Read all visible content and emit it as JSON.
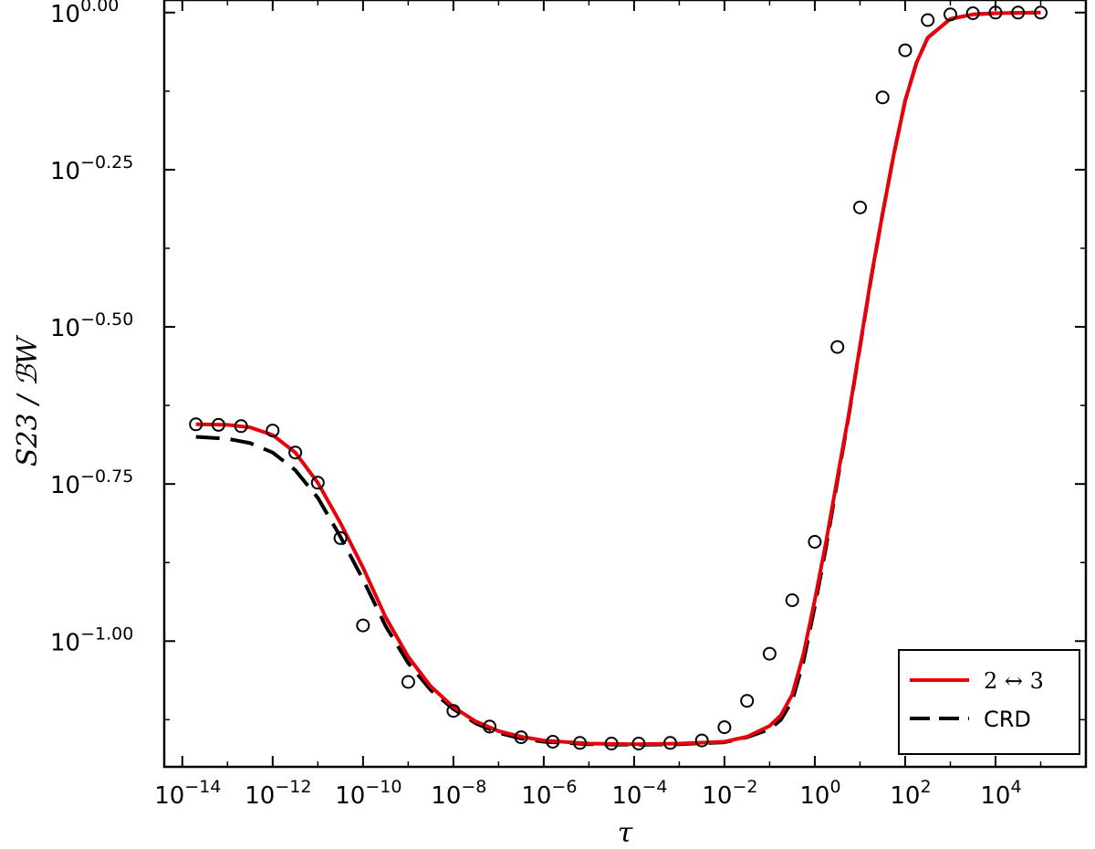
{
  "chart_data": {
    "type": "line",
    "xlabel": "τ",
    "ylabel": "S23 / ℬW",
    "xscale": "log",
    "yscale": "log",
    "xlim_log10": [
      -14.4,
      6.0
    ],
    "ylim_log10": [
      -1.2,
      0.02
    ],
    "x_ticks": [
      {
        "base": "10",
        "exp": "−14"
      },
      {
        "base": "10",
        "exp": "−12"
      },
      {
        "base": "10",
        "exp": "−10"
      },
      {
        "base": "10",
        "exp": "−8"
      },
      {
        "base": "10",
        "exp": "−6"
      },
      {
        "base": "10",
        "exp": "−4"
      },
      {
        "base": "10",
        "exp": "−2"
      },
      {
        "base": "10",
        "exp": "0"
      },
      {
        "base": "10",
        "exp": "2"
      },
      {
        "base": "10",
        "exp": "4"
      }
    ],
    "x_tick_exponents": [
      -14,
      -12,
      -10,
      -8,
      -6,
      -4,
      -2,
      0,
      2,
      4
    ],
    "y_ticks": [
      {
        "base": "10",
        "exp": "0.00"
      },
      {
        "base": "10",
        "exp": "−0.25"
      },
      {
        "base": "10",
        "exp": "−0.50"
      },
      {
        "base": "10",
        "exp": "−0.75"
      },
      {
        "base": "10",
        "exp": "−1.00"
      }
    ],
    "y_tick_exponents": [
      0.0,
      -0.25,
      -0.5,
      -0.75,
      -1.0
    ],
    "legend_position": "bottom-right",
    "series": [
      {
        "name": "2 ↔ 3",
        "style": "solid",
        "color": "#e8000b",
        "log10_x": [
          -13.7,
          -13.0,
          -12.5,
          -12.0,
          -11.5,
          -11.0,
          -10.5,
          -10.0,
          -9.5,
          -9.0,
          -8.5,
          -8.0,
          -7.5,
          -7.0,
          -6.5,
          -6.0,
          -5.0,
          -4.0,
          -3.0,
          -2.0,
          -1.5,
          -1.0,
          -0.75,
          -0.5,
          -0.25,
          0.0,
          0.25,
          0.5,
          0.75,
          1.0,
          1.25,
          1.5,
          1.75,
          2.0,
          2.25,
          2.5,
          3.0,
          3.5,
          4.0,
          5.0
        ],
        "log10_y": [
          -0.655,
          -0.656,
          -0.66,
          -0.672,
          -0.7,
          -0.748,
          -0.812,
          -0.883,
          -0.962,
          -1.025,
          -1.072,
          -1.105,
          -1.128,
          -1.143,
          -1.152,
          -1.158,
          -1.163,
          -1.164,
          -1.163,
          -1.16,
          -1.152,
          -1.135,
          -1.118,
          -1.085,
          -1.02,
          -0.935,
          -0.842,
          -0.74,
          -0.64,
          -0.53,
          -0.42,
          -0.32,
          -0.225,
          -0.14,
          -0.08,
          -0.04,
          -0.01,
          -0.003,
          -0.001,
          0.0
        ]
      },
      {
        "name": "CRD",
        "style": "dashed",
        "color": "#000000",
        "log10_x": [
          -13.7,
          -13.0,
          -12.5,
          -12.0,
          -11.5,
          -11.0,
          -10.5,
          -10.0,
          -9.5,
          -9.0,
          -8.5,
          -8.0,
          -7.5,
          -7.0,
          -6.5,
          -6.0,
          -5.0,
          -4.0,
          -3.0,
          -2.0,
          -1.5,
          -1.0,
          -0.75,
          -0.5,
          -0.25,
          0.0,
          0.25,
          0.5,
          0.75,
          1.0,
          1.25,
          1.5,
          1.75,
          2.0,
          2.25,
          2.5,
          3.0,
          3.5,
          4.0,
          5.0
        ],
        "log10_y": [
          -0.675,
          -0.678,
          -0.685,
          -0.7,
          -0.728,
          -0.772,
          -0.834,
          -0.902,
          -0.976,
          -1.035,
          -1.078,
          -1.108,
          -1.131,
          -1.146,
          -1.155,
          -1.16,
          -1.164,
          -1.165,
          -1.164,
          -1.161,
          -1.153,
          -1.14,
          -1.125,
          -1.095,
          -1.032,
          -0.945,
          -0.85,
          -0.745,
          -0.642,
          -0.532,
          -0.422,
          -0.32,
          -0.225,
          -0.14,
          -0.08,
          -0.04,
          -0.01,
          -0.003,
          -0.001,
          0.0
        ]
      },
      {
        "name": "",
        "style": "markers",
        "color": "#000000",
        "log10_x": [
          -13.7,
          -13.2,
          -12.7,
          -12.0,
          -11.5,
          -11.0,
          -10.5,
          -10.0,
          -9.0,
          -8.0,
          -7.2,
          -6.5,
          -5.8,
          -5.2,
          -4.5,
          -3.9,
          -3.2,
          -2.5,
          -2.0,
          -1.5,
          -1.0,
          -0.5,
          0.0,
          0.5,
          1.0,
          1.5,
          2.0,
          2.5,
          3.0,
          3.5,
          4.0,
          4.5,
          5.0
        ],
        "log10_y": [
          -0.655,
          -0.656,
          -0.658,
          -0.665,
          -0.7,
          -0.748,
          -0.836,
          -0.975,
          -1.065,
          -1.111,
          -1.136,
          -1.153,
          -1.16,
          -1.162,
          -1.163,
          -1.163,
          -1.162,
          -1.158,
          -1.137,
          -1.095,
          -1.02,
          -0.935,
          -0.842,
          -0.532,
          -0.31,
          -0.135,
          -0.06,
          -0.012,
          -0.003,
          -0.001,
          0.0,
          0.0,
          0.0
        ]
      }
    ]
  }
}
